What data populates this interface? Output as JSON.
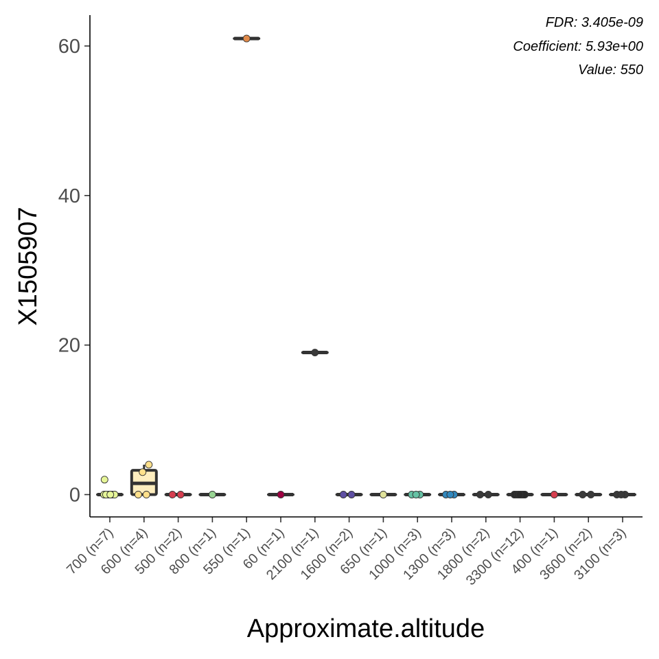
{
  "chart_data": {
    "type": "box",
    "xlabel": "Approximate.altitude",
    "ylabel": "X1505907",
    "ylim": [
      -3,
      64
    ],
    "yticks": [
      0,
      20,
      40,
      60
    ],
    "annotations": [
      "FDR: 3.405e-09",
      "Coefficient: 5.93e+00",
      "Value:  550"
    ],
    "categories": [
      "700 (n=7)",
      "600 (n=4)",
      "500 (n=2)",
      "800 (n=1)",
      "550 (n=1)",
      "60 (n=1)",
      "2100 (n=1)",
      "1600 (n=2)",
      "650 (n=1)",
      "1000 (n=3)",
      "1300 (n=3)",
      "1800 (n=2)",
      "3300 (n=12)",
      "400 (n=1)",
      "3600 (n=2)",
      "3100 (n=3)"
    ],
    "colors": [
      "#E6F598",
      "#FEE08B",
      "#D53E4F",
      "#99D594",
      "#E08A4A",
      "#9E0142",
      "#3A3A3A",
      "#5E4FA2",
      "#E0E29B",
      "#66C2A5",
      "#3288BD",
      "#3A3A3A",
      "#2A2A2A",
      "#D53E4F",
      "#3A3A3A",
      "#3A3A3A"
    ],
    "boxes": [
      {
        "q1": 0,
        "median": 0,
        "q3": 0,
        "min": 0,
        "max": 0
      },
      {
        "q1": 0,
        "median": 1.5,
        "q3": 3.25,
        "min": 0,
        "max": 4
      },
      {
        "q1": 0,
        "median": 0,
        "q3": 0,
        "min": 0,
        "max": 0
      },
      {
        "q1": 0,
        "median": 0,
        "q3": 0,
        "min": 0,
        "max": 0
      },
      {
        "q1": 61,
        "median": 61,
        "q3": 61,
        "min": 61,
        "max": 61
      },
      {
        "q1": 0,
        "median": 0,
        "q3": 0,
        "min": 0,
        "max": 0
      },
      {
        "q1": 19,
        "median": 19,
        "q3": 19,
        "min": 19,
        "max": 19
      },
      {
        "q1": 0,
        "median": 0,
        "q3": 0,
        "min": 0,
        "max": 0
      },
      {
        "q1": 0,
        "median": 0,
        "q3": 0,
        "min": 0,
        "max": 0
      },
      {
        "q1": 0,
        "median": 0,
        "q3": 0,
        "min": 0,
        "max": 0
      },
      {
        "q1": 0,
        "median": 0,
        "q3": 0,
        "min": 0,
        "max": 0
      },
      {
        "q1": 0,
        "median": 0,
        "q3": 0,
        "min": 0,
        "max": 0
      },
      {
        "q1": 0,
        "median": 0,
        "q3": 0,
        "min": 0,
        "max": 0
      },
      {
        "q1": 0,
        "median": 0,
        "q3": 0,
        "min": 0,
        "max": 0
      },
      {
        "q1": 0,
        "median": 0,
        "q3": 0,
        "min": 0,
        "max": 0
      },
      {
        "q1": 0,
        "median": 0,
        "q3": 0,
        "min": 0,
        "max": 0
      }
    ],
    "points": [
      [
        0,
        0,
        0,
        0,
        0,
        0,
        2
      ],
      [
        0,
        0,
        3,
        4
      ],
      [
        0,
        0
      ],
      [
        0
      ],
      [
        61
      ],
      [
        0
      ],
      [
        19
      ],
      [
        0,
        0
      ],
      [
        0
      ],
      [
        0,
        0,
        0
      ],
      [
        0,
        0,
        0
      ],
      [
        0,
        0
      ],
      [
        0,
        0,
        0,
        0,
        0,
        0,
        0,
        0,
        0,
        0,
        0,
        0
      ],
      [
        0
      ],
      [
        0,
        0
      ],
      [
        0,
        0,
        0
      ]
    ]
  }
}
